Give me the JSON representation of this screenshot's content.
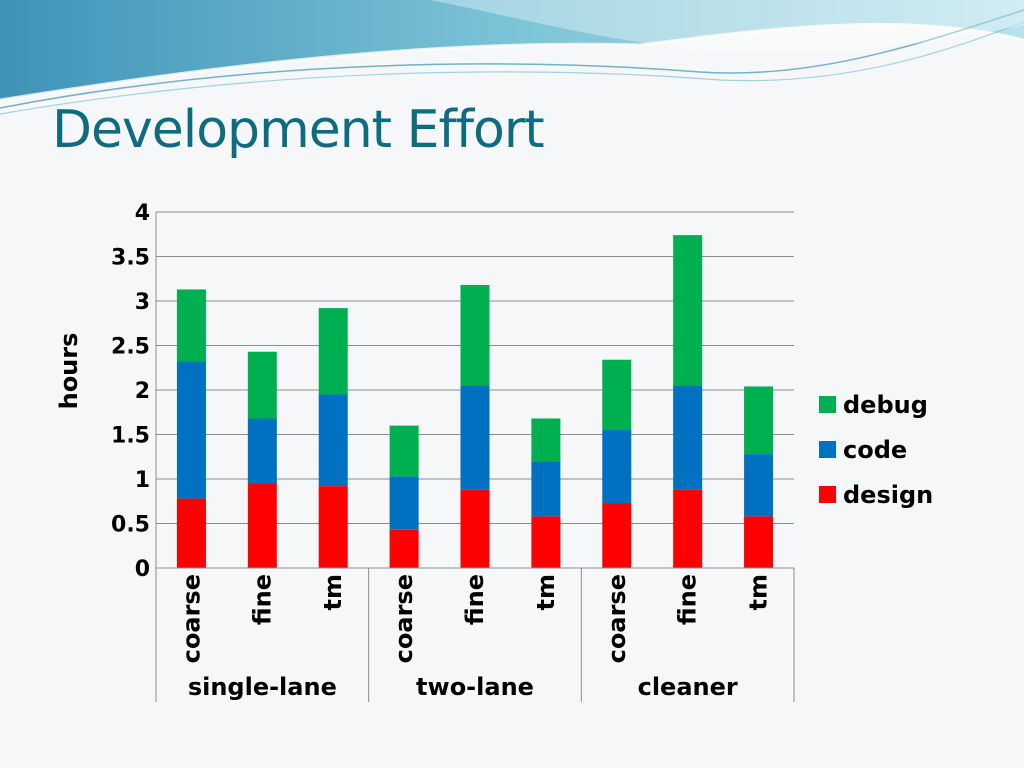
{
  "slide": {
    "title": "Development Effort"
  },
  "chart_data": {
    "type": "bar",
    "stacked": true,
    "title": "",
    "ylabel": "hours",
    "xlabel": "",
    "ylim": [
      0,
      4
    ],
    "yticks": [
      "0",
      "0.5",
      "1",
      "1.5",
      "2",
      "2.5",
      "3",
      "3.5",
      "4"
    ],
    "grid": true,
    "legend_position": "right",
    "groups": [
      {
        "name": "single-lane",
        "categories": [
          "coarse",
          "fine",
          "tm"
        ]
      },
      {
        "name": "two-lane",
        "categories": [
          "coarse",
          "fine",
          "tm"
        ]
      },
      {
        "name": "cleaner",
        "categories": [
          "coarse",
          "fine",
          "tm"
        ]
      }
    ],
    "series": [
      {
        "name": "design",
        "color": "#ff0000",
        "values": [
          0.78,
          0.95,
          0.92,
          0.43,
          0.88,
          0.58,
          0.73,
          0.88,
          0.58
        ]
      },
      {
        "name": "code",
        "color": "#0070c0",
        "values": [
          1.54,
          0.73,
          1.03,
          0.6,
          1.17,
          0.62,
          0.82,
          1.17,
          0.7
        ]
      },
      {
        "name": "debug",
        "color": "#00b050",
        "values": [
          0.81,
          0.75,
          0.97,
          0.57,
          1.13,
          0.48,
          0.79,
          1.69,
          0.76
        ]
      }
    ]
  }
}
